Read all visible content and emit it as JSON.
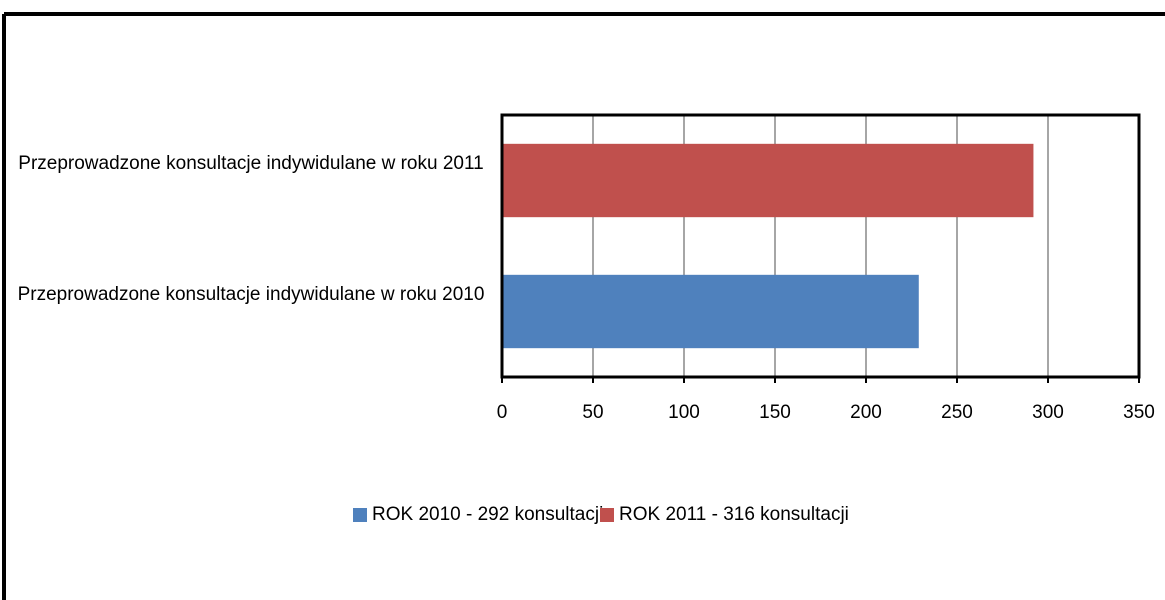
{
  "chart_data": {
    "type": "hbar",
    "categories": [
      "Przeprowadzone konsultacje indywidulane w roku 2010",
      "Przeprowadzone konsultacje indywidulane w roku 2011"
    ],
    "series": [
      {
        "name": "ROK 2010 - 292 konsultacji",
        "color": "#4f81bd",
        "values": [
          229,
          null
        ]
      },
      {
        "name": "ROK 2011 - 316 konsultacji",
        "color": "#c0504d",
        "values": [
          null,
          292
        ]
      }
    ],
    "xlim": [
      0,
      350
    ],
    "xticks": [
      0,
      50,
      100,
      150,
      200,
      250,
      300,
      350
    ],
    "grid": true,
    "legend": "bottom"
  }
}
